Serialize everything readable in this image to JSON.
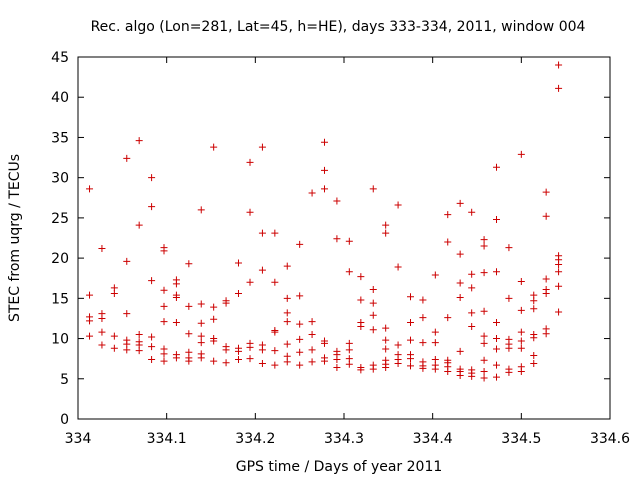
{
  "chart_data": {
    "type": "scatter",
    "title": "Rec. algo (Lon=281, Lat=45, h=HE), days 333-334, 2011, window 004",
    "xlabel": "GPS time / Days of year 2011",
    "ylabel": "STEC from uqrg / TECUs",
    "xlim": [
      334,
      334.6
    ],
    "ylim": [
      0,
      45
    ],
    "xticks": [
      334,
      334.1,
      334.2,
      334.3,
      334.4,
      334.5,
      334.6
    ],
    "xtick_labels": [
      "334",
      "334.1",
      "334.2",
      "334.3",
      "334.4",
      "334.5",
      "334.6"
    ],
    "yticks": [
      0,
      5,
      10,
      15,
      20,
      25,
      30,
      35,
      40,
      45
    ],
    "ytick_labels": [
      "0",
      "5",
      "10",
      "15",
      "20",
      "25",
      "30",
      "35",
      "40",
      "45"
    ],
    "grid": false,
    "marker": "+",
    "color": "#cc0000",
    "points": [
      [
        334.013,
        28.6
      ],
      [
        334.013,
        15.4
      ],
      [
        334.013,
        12.7
      ],
      [
        334.013,
        12.2
      ],
      [
        334.013,
        10.3
      ],
      [
        334.027,
        21.2
      ],
      [
        334.027,
        13.1
      ],
      [
        334.027,
        12.5
      ],
      [
        334.027,
        10.8
      ],
      [
        334.027,
        9.2
      ],
      [
        334.041,
        16.3
      ],
      [
        334.041,
        15.6
      ],
      [
        334.041,
        10.3
      ],
      [
        334.041,
        8.8
      ],
      [
        334.055,
        32.4
      ],
      [
        334.055,
        19.6
      ],
      [
        334.055,
        13.1
      ],
      [
        334.055,
        9.8
      ],
      [
        334.055,
        9.3
      ],
      [
        334.055,
        8.6
      ],
      [
        334.069,
        34.6
      ],
      [
        334.069,
        24.1
      ],
      [
        334.069,
        10.5
      ],
      [
        334.069,
        9.6
      ],
      [
        334.069,
        9.2
      ],
      [
        334.069,
        8.5
      ],
      [
        334.083,
        30.0
      ],
      [
        334.083,
        26.4
      ],
      [
        334.083,
        17.2
      ],
      [
        334.083,
        10.2
      ],
      [
        334.083,
        9.0
      ],
      [
        334.083,
        7.4
      ],
      [
        334.097,
        21.3
      ],
      [
        334.097,
        20.9
      ],
      [
        334.097,
        16.0
      ],
      [
        334.097,
        14.0
      ],
      [
        334.097,
        12.1
      ],
      [
        334.097,
        8.7
      ],
      [
        334.097,
        8.1
      ],
      [
        334.097,
        7.2
      ],
      [
        334.111,
        17.3
      ],
      [
        334.111,
        16.8
      ],
      [
        334.111,
        15.4
      ],
      [
        334.111,
        15.1
      ],
      [
        334.111,
        12.0
      ],
      [
        334.111,
        8.0
      ],
      [
        334.111,
        7.6
      ],
      [
        334.125,
        19.3
      ],
      [
        334.125,
        14.0
      ],
      [
        334.125,
        10.6
      ],
      [
        334.125,
        8.3
      ],
      [
        334.125,
        7.6
      ],
      [
        334.125,
        7.2
      ],
      [
        334.139,
        26.0
      ],
      [
        334.139,
        14.3
      ],
      [
        334.139,
        11.9
      ],
      [
        334.139,
        10.3
      ],
      [
        334.139,
        9.5
      ],
      [
        334.139,
        8.1
      ],
      [
        334.139,
        7.6
      ],
      [
        334.153,
        33.8
      ],
      [
        334.153,
        13.9
      ],
      [
        334.153,
        12.4
      ],
      [
        334.153,
        10.0
      ],
      [
        334.153,
        9.7
      ],
      [
        334.153,
        7.2
      ],
      [
        334.167,
        14.7
      ],
      [
        334.167,
        14.4
      ],
      [
        334.167,
        9.0
      ],
      [
        334.167,
        8.6
      ],
      [
        334.167,
        7.0
      ],
      [
        334.181,
        19.4
      ],
      [
        334.181,
        15.6
      ],
      [
        334.181,
        8.8
      ],
      [
        334.181,
        8.4
      ],
      [
        334.181,
        7.4
      ],
      [
        334.194,
        31.9
      ],
      [
        334.194,
        25.7
      ],
      [
        334.194,
        17.0
      ],
      [
        334.194,
        9.4
      ],
      [
        334.194,
        8.9
      ],
      [
        334.194,
        7.5
      ],
      [
        334.208,
        33.8
      ],
      [
        334.208,
        23.1
      ],
      [
        334.208,
        18.5
      ],
      [
        334.208,
        9.2
      ],
      [
        334.208,
        8.6
      ],
      [
        334.208,
        6.9
      ],
      [
        334.222,
        23.1
      ],
      [
        334.222,
        17.0
      ],
      [
        334.222,
        11.0
      ],
      [
        334.222,
        10.8
      ],
      [
        334.222,
        8.5
      ],
      [
        334.222,
        6.7
      ],
      [
        334.236,
        19.0
      ],
      [
        334.236,
        15.0
      ],
      [
        334.236,
        13.2
      ],
      [
        334.236,
        12.1
      ],
      [
        334.236,
        9.3
      ],
      [
        334.236,
        7.8
      ],
      [
        334.236,
        7.1
      ],
      [
        334.25,
        21.7
      ],
      [
        334.25,
        15.3
      ],
      [
        334.25,
        11.8
      ],
      [
        334.25,
        9.9
      ],
      [
        334.25,
        8.3
      ],
      [
        334.25,
        6.7
      ],
      [
        334.264,
        28.1
      ],
      [
        334.264,
        12.1
      ],
      [
        334.264,
        10.5
      ],
      [
        334.264,
        8.6
      ],
      [
        334.264,
        7.1
      ],
      [
        334.278,
        34.4
      ],
      [
        334.278,
        30.9
      ],
      [
        334.278,
        28.6
      ],
      [
        334.278,
        9.7
      ],
      [
        334.278,
        9.4
      ],
      [
        334.278,
        7.6
      ],
      [
        334.278,
        7.2
      ],
      [
        334.292,
        27.1
      ],
      [
        334.292,
        22.4
      ],
      [
        334.292,
        8.4
      ],
      [
        334.292,
        8.0
      ],
      [
        334.292,
        7.4
      ],
      [
        334.292,
        6.4
      ],
      [
        334.306,
        22.1
      ],
      [
        334.306,
        18.3
      ],
      [
        334.306,
        9.4
      ],
      [
        334.306,
        8.6
      ],
      [
        334.306,
        7.5
      ],
      [
        334.306,
        6.8
      ],
      [
        334.319,
        17.7
      ],
      [
        334.319,
        14.8
      ],
      [
        334.319,
        12.0
      ],
      [
        334.319,
        11.5
      ],
      [
        334.319,
        6.4
      ],
      [
        334.319,
        6.1
      ],
      [
        334.333,
        28.6
      ],
      [
        334.333,
        16.1
      ],
      [
        334.333,
        14.4
      ],
      [
        334.333,
        12.9
      ],
      [
        334.333,
        11.1
      ],
      [
        334.333,
        6.7
      ],
      [
        334.333,
        6.2
      ],
      [
        334.347,
        24.1
      ],
      [
        334.347,
        23.1
      ],
      [
        334.347,
        11.3
      ],
      [
        334.347,
        9.8
      ],
      [
        334.347,
        8.7
      ],
      [
        334.347,
        7.3
      ],
      [
        334.347,
        6.8
      ],
      [
        334.347,
        6.4
      ],
      [
        334.361,
        26.6
      ],
      [
        334.361,
        18.9
      ],
      [
        334.361,
        9.2
      ],
      [
        334.361,
        8.0
      ],
      [
        334.361,
        7.4
      ],
      [
        334.361,
        6.9
      ],
      [
        334.375,
        15.2
      ],
      [
        334.375,
        12.0
      ],
      [
        334.375,
        9.8
      ],
      [
        334.375,
        8.0
      ],
      [
        334.375,
        7.5
      ],
      [
        334.375,
        6.6
      ],
      [
        334.389,
        14.8
      ],
      [
        334.389,
        12.6
      ],
      [
        334.389,
        9.5
      ],
      [
        334.389,
        7.1
      ],
      [
        334.389,
        6.6
      ],
      [
        334.389,
        6.3
      ],
      [
        334.403,
        17.9
      ],
      [
        334.403,
        10.8
      ],
      [
        334.403,
        9.5
      ],
      [
        334.403,
        7.4
      ],
      [
        334.403,
        6.7
      ],
      [
        334.403,
        6.2
      ],
      [
        334.417,
        25.4
      ],
      [
        334.417,
        22.0
      ],
      [
        334.417,
        12.6
      ],
      [
        334.417,
        7.3
      ],
      [
        334.417,
        7.0
      ],
      [
        334.417,
        6.5
      ],
      [
        334.417,
        5.9
      ],
      [
        334.431,
        26.8
      ],
      [
        334.431,
        20.5
      ],
      [
        334.431,
        16.9
      ],
      [
        334.431,
        15.1
      ],
      [
        334.431,
        8.4
      ],
      [
        334.431,
        6.2
      ],
      [
        334.431,
        5.9
      ],
      [
        334.431,
        5.4
      ],
      [
        334.444,
        25.7
      ],
      [
        334.444,
        18.0
      ],
      [
        334.444,
        16.3
      ],
      [
        334.444,
        13.2
      ],
      [
        334.444,
        11.5
      ],
      [
        334.444,
        6.1
      ],
      [
        334.444,
        5.7
      ],
      [
        334.444,
        5.3
      ],
      [
        334.458,
        22.3
      ],
      [
        334.458,
        21.5
      ],
      [
        334.458,
        18.2
      ],
      [
        334.458,
        13.4
      ],
      [
        334.458,
        10.3
      ],
      [
        334.458,
        9.4
      ],
      [
        334.458,
        7.3
      ],
      [
        334.458,
        5.9
      ],
      [
        334.458,
        5.1
      ],
      [
        334.472,
        31.3
      ],
      [
        334.472,
        24.8
      ],
      [
        334.472,
        18.3
      ],
      [
        334.472,
        12.0
      ],
      [
        334.472,
        10.0
      ],
      [
        334.472,
        8.7
      ],
      [
        334.472,
        6.7
      ],
      [
        334.472,
        5.2
      ],
      [
        334.486,
        21.3
      ],
      [
        334.486,
        15.0
      ],
      [
        334.486,
        9.9
      ],
      [
        334.486,
        9.3
      ],
      [
        334.486,
        8.8
      ],
      [
        334.486,
        6.2
      ],
      [
        334.486,
        5.8
      ],
      [
        334.5,
        32.9
      ],
      [
        334.5,
        17.1
      ],
      [
        334.5,
        13.5
      ],
      [
        334.5,
        10.8
      ],
      [
        334.5,
        9.7
      ],
      [
        334.5,
        8.8
      ],
      [
        334.5,
        6.5
      ],
      [
        334.5,
        5.9
      ],
      [
        334.514,
        15.4
      ],
      [
        334.514,
        14.7
      ],
      [
        334.514,
        13.7
      ],
      [
        334.514,
        10.5
      ],
      [
        334.514,
        10.1
      ],
      [
        334.514,
        7.9
      ],
      [
        334.514,
        6.9
      ],
      [
        334.528,
        28.2
      ],
      [
        334.528,
        25.2
      ],
      [
        334.528,
        17.4
      ],
      [
        334.528,
        16.1
      ],
      [
        334.528,
        15.6
      ],
      [
        334.528,
        11.2
      ],
      [
        334.528,
        10.6
      ],
      [
        334.542,
        44.0
      ],
      [
        334.542,
        41.1
      ],
      [
        334.542,
        20.3
      ],
      [
        334.542,
        19.8
      ],
      [
        334.542,
        19.2
      ],
      [
        334.542,
        18.3
      ],
      [
        334.542,
        16.5
      ],
      [
        334.542,
        13.3
      ]
    ]
  }
}
